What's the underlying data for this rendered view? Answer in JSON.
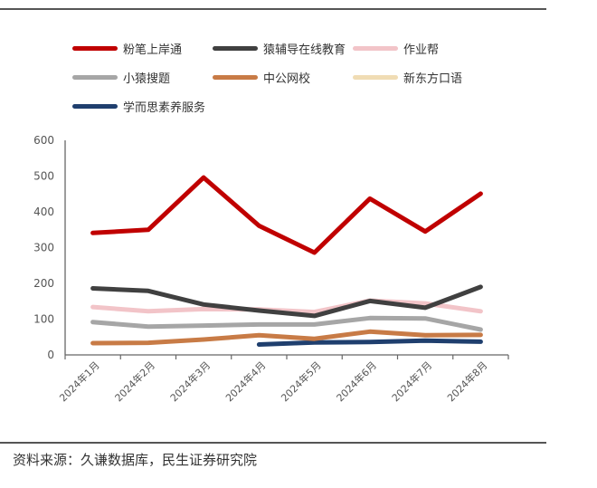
{
  "chart_data": {
    "type": "line",
    "categories": [
      "2024年1月",
      "2024年2月",
      "2024年3月",
      "2024年4月",
      "2024年5月",
      "2024年6月",
      "2024年7月",
      "2024年8月"
    ],
    "ylim": [
      0,
      600
    ],
    "yticks": [
      "0",
      "100",
      "200",
      "300",
      "400",
      "500",
      "600"
    ],
    "grid": false,
    "legend_position": "top",
    "series": [
      {
        "name": "粉笔上岸通",
        "color": "#c00000",
        "values": [
          341,
          350,
          496,
          361,
          286,
          437,
          345,
          451
        ]
      },
      {
        "name": "猿辅导在线教育",
        "color": "#404040",
        "values": [
          186,
          179,
          141,
          124,
          109,
          151,
          132,
          190
        ]
      },
      {
        "name": "作业帮",
        "color": "#f2c4c8",
        "values": [
          134,
          122,
          128,
          127,
          120,
          152,
          144,
          122
        ]
      },
      {
        "name": "小猿搜题",
        "color": "#a6a6a6",
        "values": [
          92,
          79,
          82,
          85,
          85,
          103,
          102,
          71
        ]
      },
      {
        "name": "中公网校",
        "color": "#c87b46",
        "values": [
          33,
          34,
          43,
          55,
          45,
          65,
          55,
          56
        ]
      },
      {
        "name": "新东方口语",
        "color": "#f0dcb4",
        "values": [
          null,
          null,
          null,
          null,
          null,
          null,
          null,
          null
        ]
      },
      {
        "name": "学而思素养服务",
        "color": "#1f3f6e",
        "values": [
          null,
          null,
          null,
          29,
          35,
          36,
          40,
          37
        ]
      }
    ]
  },
  "source": "资料来源：久谦数据库，民生证券研究院"
}
